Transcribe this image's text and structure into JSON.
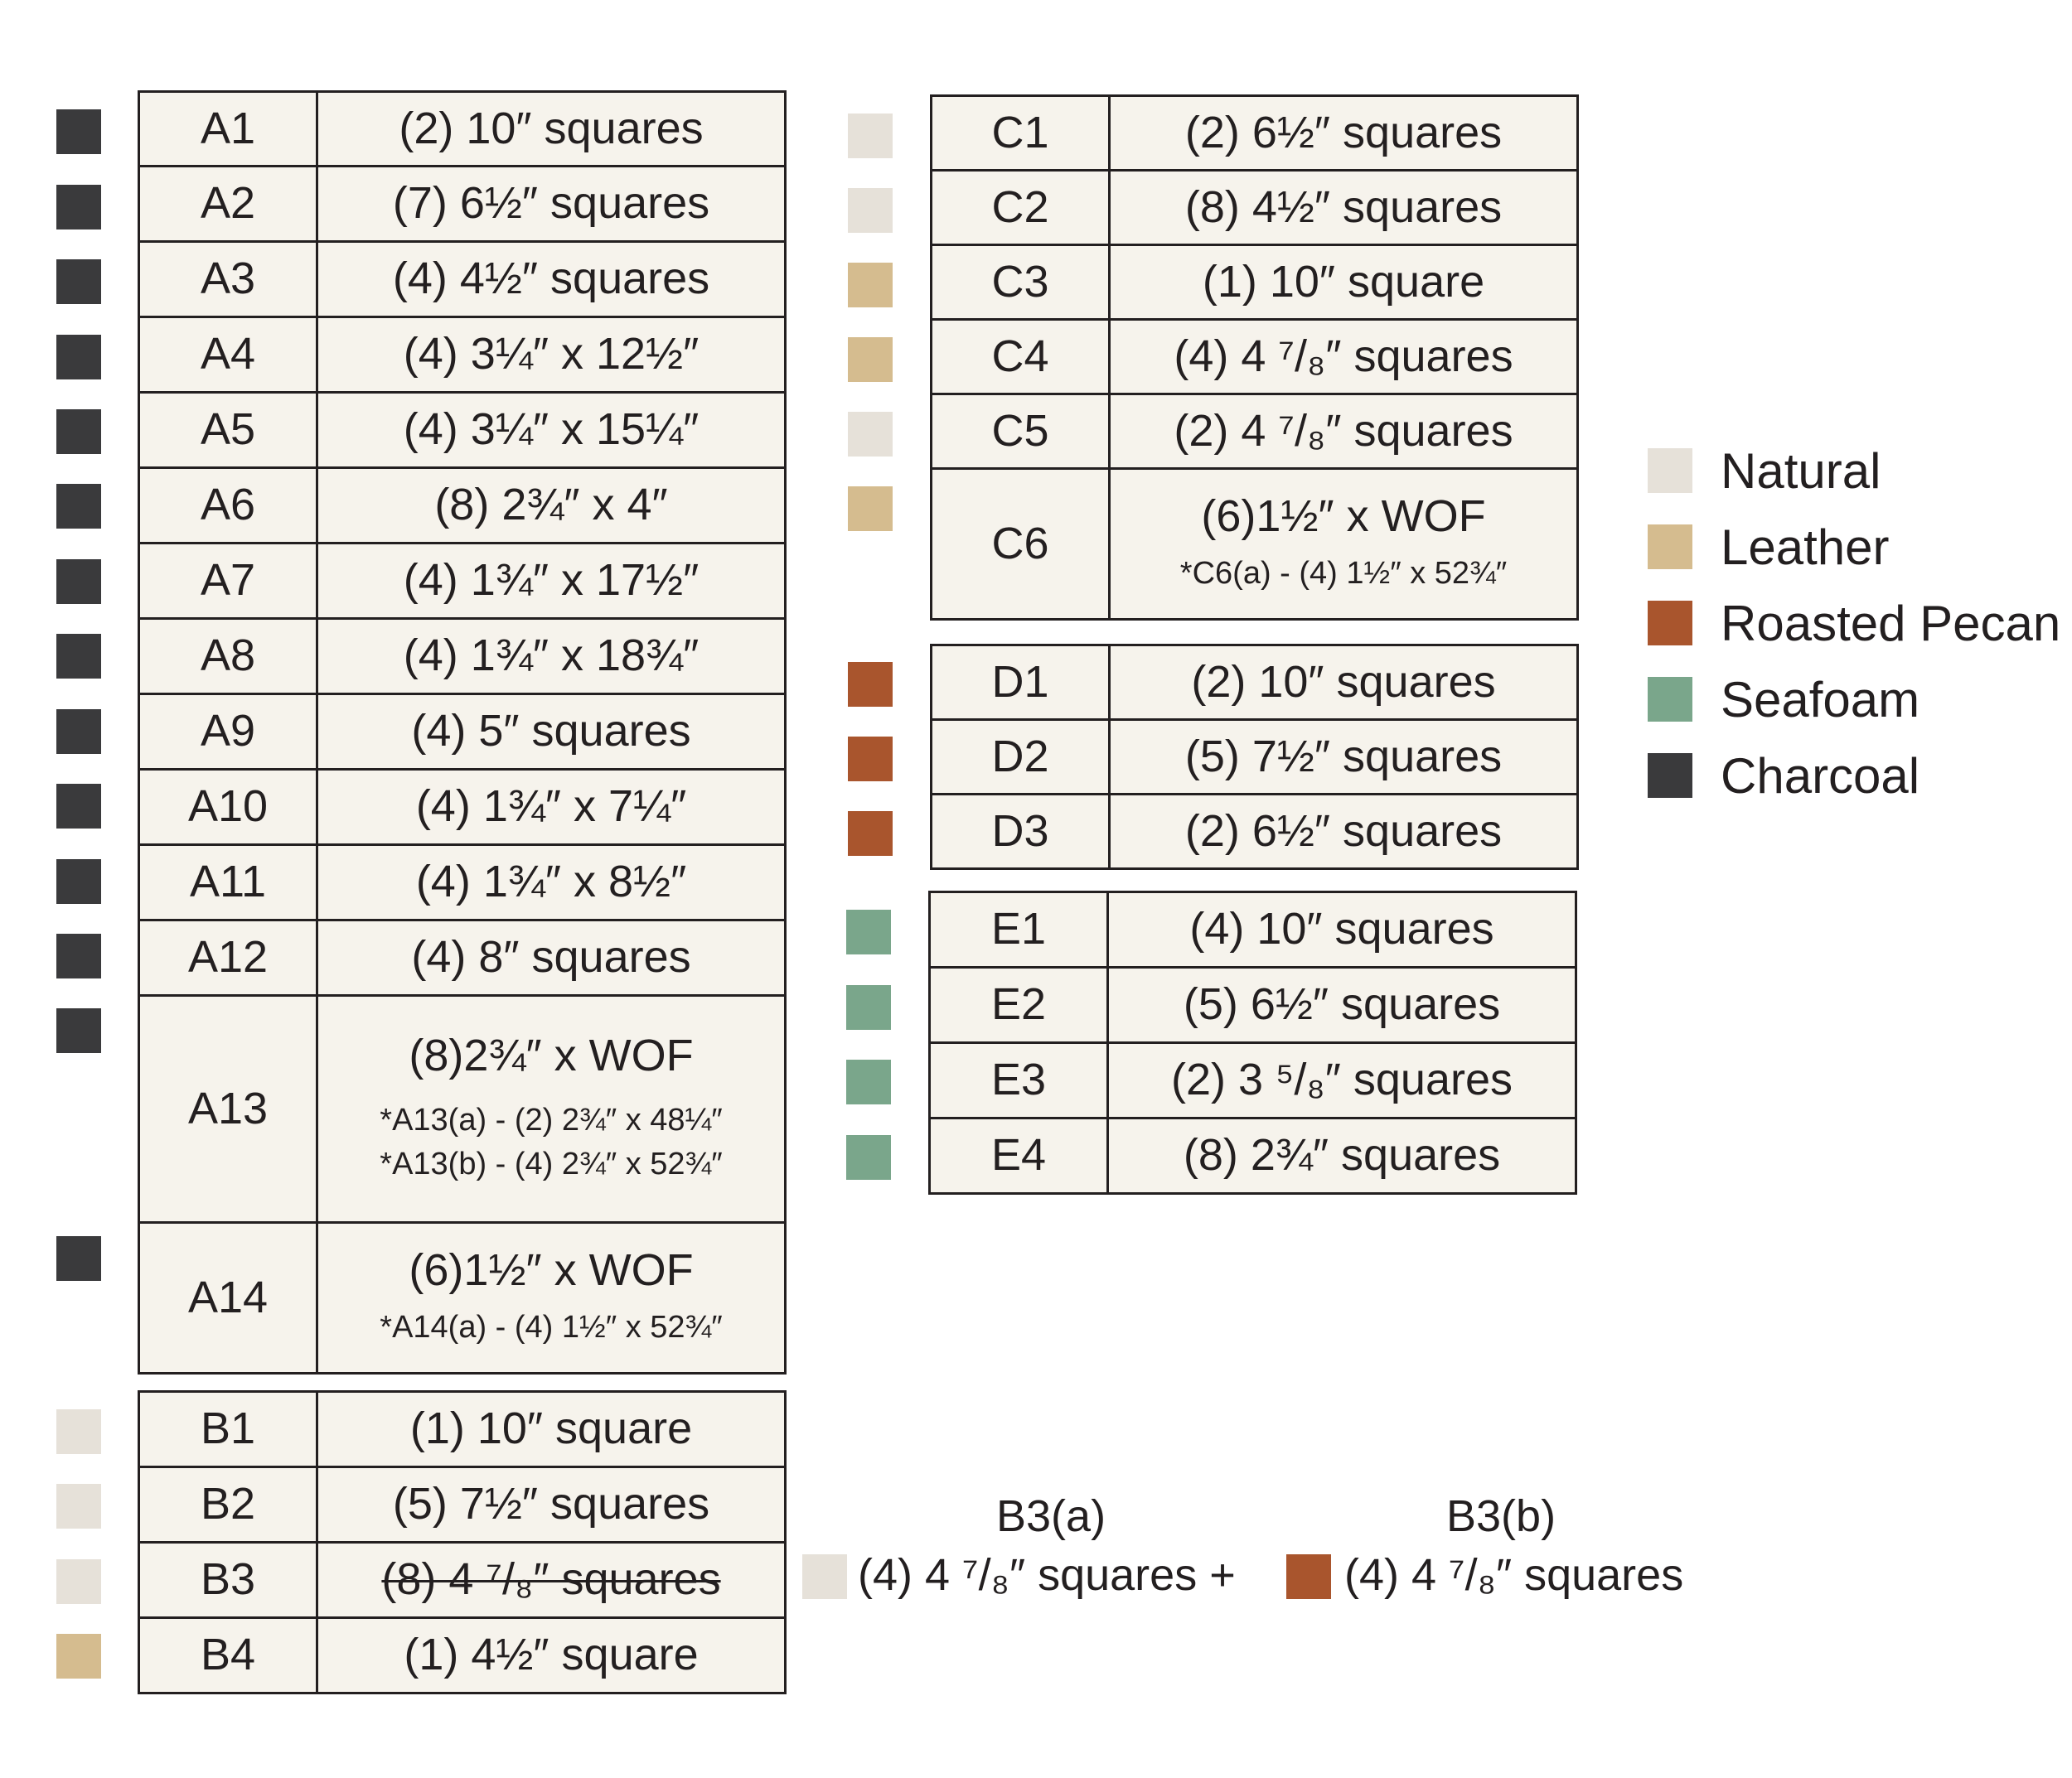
{
  "colors": {
    "natural": "#e6e1d9",
    "leather": "#d5bc8f",
    "roasted_pecan": "#a9552d",
    "seafoam": "#7aa68b",
    "charcoal": "#3a3a3c",
    "table_bg": "#f6f3ec"
  },
  "legend": [
    {
      "label": "Natural",
      "color": "#e6e1d9"
    },
    {
      "label": "Leather",
      "color": "#d5bc8f"
    },
    {
      "label": "Roasted Pecan",
      "color": "#a9552d"
    },
    {
      "label": "Seafoam",
      "color": "#7aa68b"
    },
    {
      "label": "Charcoal",
      "color": "#3a3a3c"
    }
  ],
  "groups": {
    "A": [
      {
        "label": "A1",
        "desc": "(2) 10″ squares",
        "color": "#3a3a3c"
      },
      {
        "label": "A2",
        "desc": "(7) 6½″ squares",
        "color": "#3a3a3c"
      },
      {
        "label": "A3",
        "desc": "(4) 4½″ squares",
        "color": "#3a3a3c"
      },
      {
        "label": "A4",
        "desc": "(4) 3¼″ x 12½″",
        "color": "#3a3a3c"
      },
      {
        "label": "A5",
        "desc": "(4) 3¼″ x 15¼″",
        "color": "#3a3a3c"
      },
      {
        "label": "A6",
        "desc": "(8) 2¾″ x 4″",
        "color": "#3a3a3c"
      },
      {
        "label": "A7",
        "desc": "(4) 1¾″ x 17½″",
        "color": "#3a3a3c"
      },
      {
        "label": "A8",
        "desc": "(4) 1¾″ x 18¾″",
        "color": "#3a3a3c"
      },
      {
        "label": "A9",
        "desc": "(4) 5″ squares",
        "color": "#3a3a3c"
      },
      {
        "label": "A10",
        "desc": "(4) 1¾″ x 7¼″",
        "color": "#3a3a3c"
      },
      {
        "label": "A11",
        "desc": "(4) 1¾″ x 8½″",
        "color": "#3a3a3c"
      },
      {
        "label": "A12",
        "desc": "(4) 8″ squares",
        "color": "#3a3a3c"
      },
      {
        "label": "A13",
        "desc": "(8)2¾″ x WOF",
        "note1": "*A13(a) - (2) 2¾″ x 48¼″",
        "note2": "*A13(b) - (4) 2¾″ x 52¾″",
        "color": "#3a3a3c"
      },
      {
        "label": "A14",
        "desc": "(6)1½″ x WOF",
        "note1": "*A14(a) - (4) 1½″ x 52¾″",
        "color": "#3a3a3c"
      }
    ],
    "B": [
      {
        "label": "B1",
        "desc": "(1) 10″ square",
        "color": "#e6e1d9"
      },
      {
        "label": "B2",
        "desc": "(5) 7½″ squares",
        "color": "#e6e1d9"
      },
      {
        "label": "B3",
        "desc": "(8) 4 ⁷/₈″ squares",
        "color": "#e6e1d9"
      },
      {
        "label": "B4",
        "desc": "(1) 4½″ square",
        "color": "#d5bc8f"
      }
    ],
    "C": [
      {
        "label": "C1",
        "desc": "(2) 6½″ squares",
        "color": "#e6e1d9"
      },
      {
        "label": "C2",
        "desc": "(8) 4½″ squares",
        "color": "#e6e1d9"
      },
      {
        "label": "C3",
        "desc": "(1) 10″ square",
        "color": "#d5bc8f"
      },
      {
        "label": "C4",
        "desc": "(4) 4 ⁷/₈″  squares",
        "color": "#d5bc8f"
      },
      {
        "label": "C5",
        "desc": "(2) 4 ⁷/₈″ squares",
        "color": "#e6e1d9"
      },
      {
        "label": "C6",
        "desc": "(6)1½″ x WOF",
        "note1": "*C6(a) - (4) 1½″ x 52¾″",
        "color": "#d5bc8f"
      }
    ],
    "D": [
      {
        "label": "D1",
        "desc": "(2) 10″ squares",
        "color": "#a9552d"
      },
      {
        "label": "D2",
        "desc": "(5) 7½″ squares",
        "color": "#a9552d"
      },
      {
        "label": "D3",
        "desc": "(2) 6½″ squares",
        "color": "#a9552d"
      }
    ],
    "E": [
      {
        "label": "E1",
        "desc": "(4) 10″ squares",
        "color": "#7aa68b"
      },
      {
        "label": "E2",
        "desc": "(5) 6½″ squares",
        "color": "#7aa68b"
      },
      {
        "label": "E3",
        "desc": "(2) 3 ⁵/₈″ squares",
        "color": "#7aa68b"
      },
      {
        "label": "E4",
        "desc": "(8) 2¾″ squares",
        "color": "#7aa68b"
      }
    ]
  },
  "b3_split": {
    "a_title": "B3(a)",
    "a_text": "(4) 4 ⁷/₈″  squares +",
    "a_color": "#e6e1d9",
    "b_title": "B3(b)",
    "b_text": "(4) 4 ⁷/₈″  squares",
    "b_color": "#a9552d"
  }
}
